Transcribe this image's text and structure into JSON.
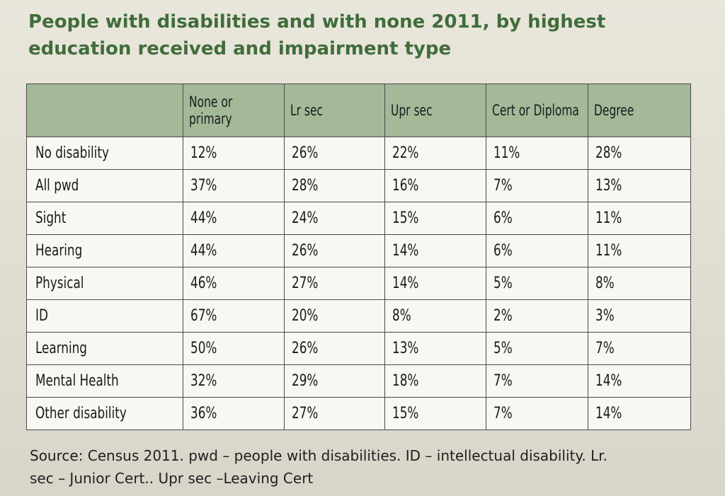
{
  "title": {
    "line1": "People with disabilities and with none 2011, by highest",
    "line2": "education received and impairment type"
  },
  "table": {
    "headers": [
      "",
      "None or primary",
      "Lr sec",
      "Upr sec",
      "Cert or Diploma",
      "Degree"
    ],
    "rows": [
      {
        "label": "No disability",
        "values": [
          "12%",
          "26%",
          "22%",
          "11%",
          "28%"
        ]
      },
      {
        "label": "All pwd",
        "values": [
          "37%",
          "28%",
          "16%",
          "7%",
          "13%"
        ]
      },
      {
        "label": "Sight",
        "values": [
          "44%",
          "24%",
          "15%",
          "6%",
          "11%"
        ]
      },
      {
        "label": "Hearing",
        "values": [
          "44%",
          "26%",
          "14%",
          "6%",
          "11%"
        ]
      },
      {
        "label": "Physical",
        "values": [
          "46%",
          "27%",
          "14%",
          "5%",
          "8%"
        ]
      },
      {
        "label": "ID",
        "values": [
          "67%",
          "20%",
          "8%",
          "2%",
          "3%"
        ]
      },
      {
        "label": "Learning",
        "values": [
          "50%",
          "26%",
          "13%",
          "5%",
          "7%"
        ]
      },
      {
        "label": "Mental Health",
        "values": [
          "32%",
          "29%",
          "18%",
          "7%",
          "14%"
        ]
      },
      {
        "label": "Other disability",
        "values": [
          "36%",
          "27%",
          "15%",
          "7%",
          "14%"
        ]
      }
    ]
  },
  "source": {
    "line1": "Source: Census 2011. pwd – people with disabilities. ID – intellectual disability. Lr.",
    "line2": "sec – Junior Cert.. Upr sec –Leaving Cert"
  },
  "colors": {
    "title": "#3f6d3a",
    "header_fill": "#a3b998",
    "table_bg": "#f8f7f1",
    "page_bg": "#e5e2d8"
  }
}
